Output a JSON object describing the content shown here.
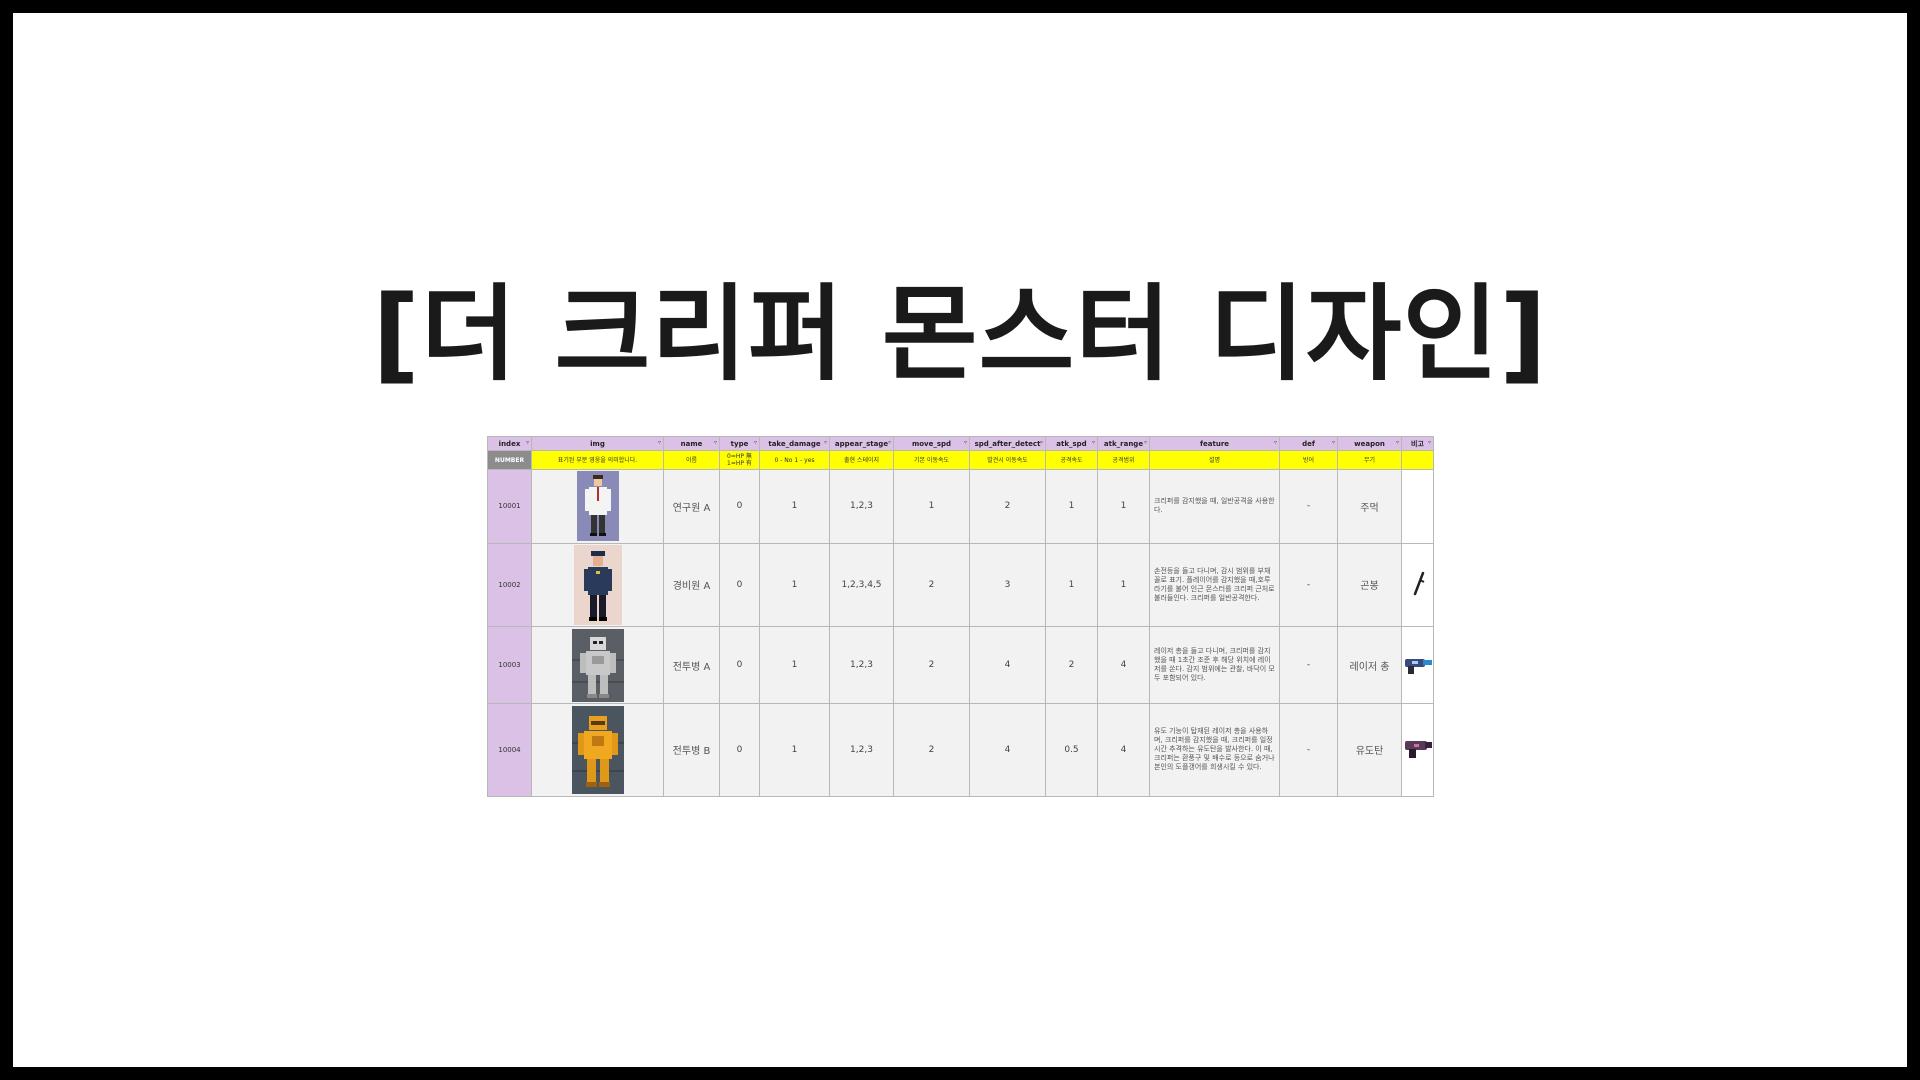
{
  "slide": {
    "title": "[더 크리퍼 몬스터 디자인]"
  },
  "table": {
    "headers": [
      "index",
      "img",
      "name",
      "type",
      "take_damage",
      "appear_stage",
      "move_spd",
      "spd_after_detect",
      "atk_spd",
      "atk_range",
      "feature",
      "def",
      "weapon",
      "비고"
    ],
    "subheaders": [
      "NUMBER",
      "표기된 부분 영웅을 의미합니다.",
      "이름",
      "0=HP 無 1=HP 有",
      "0 - No 1 - yes",
      "출현 스테이지",
      "기본 이동속도",
      "발견시 이동속도",
      "공격속도",
      "공격범위",
      "설명",
      "방어",
      "무기",
      ""
    ],
    "rows": [
      {
        "index": "10001",
        "sprite": "researcher-sprite",
        "name": "연구원 A",
        "type": "0",
        "take_damage": "1",
        "appear_stage": "1,2,3",
        "move_spd": "1",
        "spd_after_detect": "2",
        "atk_spd": "1",
        "atk_range": "1",
        "feature": "크리퍼를 감지했을 때, 일반공격을 사용한다.",
        "def": "-",
        "weapon": "주먹",
        "weapon_icon": ""
      },
      {
        "index": "10002",
        "sprite": "guard-sprite",
        "name": "경비원 A",
        "type": "0",
        "take_damage": "1",
        "appear_stage": "1,2,3,4,5",
        "move_spd": "2",
        "spd_after_detect": "3",
        "atk_spd": "1",
        "atk_range": "1",
        "feature": "손전등을 들고 다니며, 감시 범위를 부채꼴로 표기. 플레이어를 감지했을 때,호루라기를 불어 인근 몬스터를 크리퍼 근처로 불러들인다. 크리퍼를 일반공격한다.",
        "def": "-",
        "weapon": "곤봉",
        "weapon_icon": "baton-icon"
      },
      {
        "index": "10003",
        "sprite": "silver-robot-sprite",
        "name": "전투병 A",
        "type": "0",
        "take_damage": "1",
        "appear_stage": "1,2,3",
        "move_spd": "2",
        "spd_after_detect": "4",
        "atk_spd": "2",
        "atk_range": "4",
        "feature": "레이저 총을 들고 다니며, 크리퍼를 감지했을 때 1초간 조준 후 해당 위치에 레이저를 쏜다. 감지 범위에는 관찰, 바닥이 모두 포함되어 있다.",
        "def": "-",
        "weapon": "레이저 총",
        "weapon_icon": "laser-gun-icon"
      },
      {
        "index": "10004",
        "sprite": "gold-robot-sprite",
        "name": "전투병 B",
        "type": "0",
        "take_damage": "1",
        "appear_stage": "1,2,3",
        "move_spd": "2",
        "spd_after_detect": "4",
        "atk_spd": "0.5",
        "atk_range": "4",
        "feature": "유도 기능이 탑재된 레이저 총을 사용하며, 크리퍼를 감지했을 때, 크리퍼를 일정 시간 추격하는 유도탄을 발사한다. 이 때, 크리퍼는 환풍구 및 배수로 등으로 숨거나 본인의 도플갱어를 희생시킬 수 있다.",
        "def": "-",
        "weapon": "유도탄",
        "weapon_icon": "homing-gun-icon"
      }
    ]
  },
  "colors": {
    "header_bg": "#dcc1e6",
    "subheader_bg": "#ffff00",
    "number_cell_bg": "#8c8c8c",
    "row_bg": "#f2f2f2",
    "frame": "#000000"
  }
}
